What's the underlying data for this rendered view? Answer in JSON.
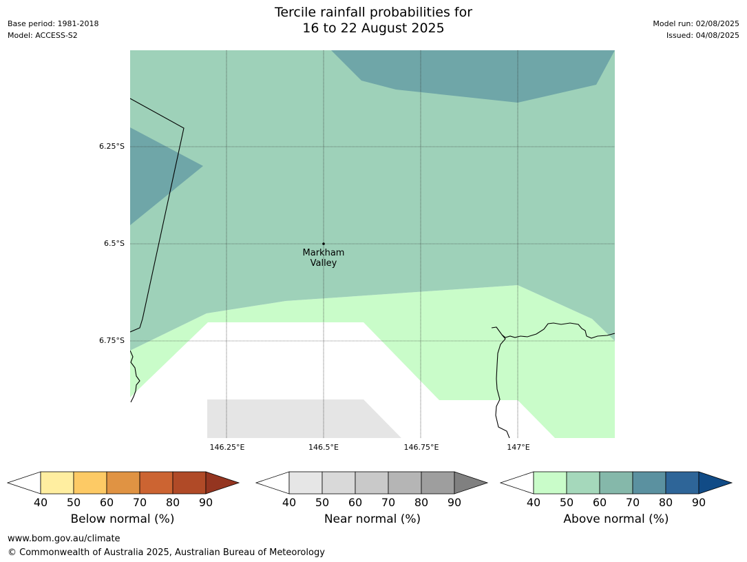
{
  "header": {
    "title_line1": "Tercile rainfall probabilities for",
    "title_line2": "16 to 22 August 2025",
    "base_period": "Base period: 1981-2018",
    "model": "Model: ACCESS-S2",
    "model_run": "Model run: 02/08/2025",
    "issued": "Issued: 04/08/2025"
  },
  "map": {
    "lat_labels": [
      "6.25°S",
      "6.5°S",
      "6.75°S"
    ],
    "lon_labels": [
      "146.25°E",
      "146.5°E",
      "146.75°E",
      "147°E"
    ],
    "place": {
      "line1": "Markham",
      "line2": "Valley"
    },
    "colors": {
      "above_50": "#9ed1b9",
      "above_60": "#6fa6a8",
      "above_40": "#c9fcc9",
      "near_40": "#e5e5e5",
      "none": "#ffffff"
    }
  },
  "colorbars": [
    {
      "title": "Below normal (%)",
      "ticks": [
        "40",
        "50",
        "60",
        "70",
        "80",
        "90"
      ],
      "colors": [
        "#ffeea0",
        "#fdca65",
        "#e09343",
        "#cc6432",
        "#b04a27",
        "#943520"
      ]
    },
    {
      "title": "Near normal (%)",
      "ticks": [
        "40",
        "50",
        "60",
        "70",
        "80",
        "90"
      ],
      "colors": [
        "#e6e6e6",
        "#d9d9d9",
        "#c9c9c9",
        "#b5b5b5",
        "#9e9e9e",
        "#808080"
      ]
    },
    {
      "title": "Above normal (%)",
      "ticks": [
        "40",
        "50",
        "60",
        "70",
        "80",
        "90"
      ],
      "colors": [
        "#c9fcc9",
        "#a5d8bb",
        "#85b8aa",
        "#5b91a0",
        "#2e6598",
        "#114b86"
      ]
    }
  ],
  "footer": {
    "url": "www.bom.gov.au/climate",
    "copyright": "© Commonwealth of Australia 2025, Australian Bureau of Meteorology"
  }
}
